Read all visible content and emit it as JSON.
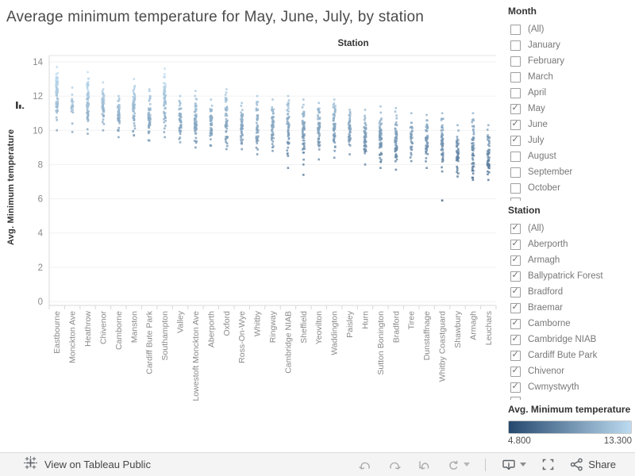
{
  "title": "Average minimum temperature for May, June, July, by station",
  "chart": {
    "column_header": "Station",
    "y_axis_label": "Avg. Minimum temperature"
  },
  "chart_data": {
    "type": "scatter",
    "subtype": "strip-plot",
    "title": "Average minimum temperature for May, June, July, by station",
    "xlabel": "Station",
    "ylabel": "Avg. Minimum temperature",
    "ylim": [
      0,
      14
    ],
    "yticks": [
      0,
      2,
      4,
      6,
      8,
      10,
      12,
      14
    ],
    "grid": true,
    "color_scale": {
      "label": "Avg. Minimum temperature",
      "min": 4.8,
      "max": 13.3,
      "min_color": "#25486e",
      "max_color": "#bcdbf0"
    },
    "stations": [
      {
        "name": "Eastbourne",
        "range": [
          10.6,
          13.7
        ],
        "n": 55,
        "outliers": [
          10.0
        ]
      },
      {
        "name": "Monckton Ave",
        "range": [
          10.4,
          12.5
        ],
        "n": 16,
        "outliers": [
          9.9
        ]
      },
      {
        "name": "Heathrow",
        "range": [
          9.8,
          13.4
        ],
        "n": 55,
        "outliers": []
      },
      {
        "name": "Chivenor",
        "range": [
          10.0,
          12.8
        ],
        "n": 45,
        "outliers": []
      },
      {
        "name": "Camborne",
        "range": [
          9.6,
          12.0
        ],
        "n": 40,
        "outliers": []
      },
      {
        "name": "Manston",
        "range": [
          9.7,
          13.0
        ],
        "n": 50,
        "outliers": []
      },
      {
        "name": "Cardiff Bute Park",
        "range": [
          9.4,
          12.4
        ],
        "n": 50,
        "outliers": []
      },
      {
        "name": "Southampton",
        "range": [
          9.6,
          13.6
        ],
        "n": 55,
        "outliers": []
      },
      {
        "name": "Valley",
        "range": [
          9.3,
          12.0
        ],
        "n": 45,
        "outliers": []
      },
      {
        "name": "Lowestoft Monckton Ave",
        "range": [
          9.0,
          12.3
        ],
        "n": 55,
        "outliers": []
      },
      {
        "name": "Aberporth",
        "range": [
          9.1,
          11.8
        ],
        "n": 45,
        "outliers": []
      },
      {
        "name": "Oxford",
        "range": [
          8.9,
          12.4
        ],
        "n": 50,
        "outliers": []
      },
      {
        "name": "Ross-On-Wye",
        "range": [
          8.9,
          11.6
        ],
        "n": 45,
        "outliers": []
      },
      {
        "name": "Whitby",
        "range": [
          8.6,
          12.0
        ],
        "n": 40,
        "outliers": []
      },
      {
        "name": "Ringway",
        "range": [
          8.8,
          11.8
        ],
        "n": 45,
        "outliers": []
      },
      {
        "name": "Cambridge NIAB",
        "range": [
          8.5,
          12.0
        ],
        "n": 55,
        "outliers": [
          7.8
        ]
      },
      {
        "name": "Sheffield",
        "range": [
          8.0,
          11.8
        ],
        "n": 55,
        "outliers": [
          7.4
        ]
      },
      {
        "name": "Yeovilton",
        "range": [
          8.3,
          11.6
        ],
        "n": 50,
        "outliers": []
      },
      {
        "name": "Waddington",
        "range": [
          8.4,
          11.8
        ],
        "n": 55,
        "outliers": []
      },
      {
        "name": "Paisley",
        "range": [
          8.6,
          11.2
        ],
        "n": 40,
        "outliers": []
      },
      {
        "name": "Hurn",
        "range": [
          8.0,
          11.2
        ],
        "n": 50,
        "outliers": []
      },
      {
        "name": "Sutton Bonington",
        "range": [
          7.8,
          11.4
        ],
        "n": 55,
        "outliers": []
      },
      {
        "name": "Bradford",
        "range": [
          7.7,
          11.3
        ],
        "n": 55,
        "outliers": []
      },
      {
        "name": "Tiree",
        "range": [
          8.2,
          11.0
        ],
        "n": 30,
        "outliers": []
      },
      {
        "name": "Dunstaffnage",
        "range": [
          7.8,
          10.9
        ],
        "n": 45,
        "outliers": []
      },
      {
        "name": "Whitby Coastguard",
        "range": [
          7.6,
          11.0
        ],
        "n": 50,
        "outliers": [
          5.9
        ]
      },
      {
        "name": "Shawbury",
        "range": [
          7.3,
          10.3
        ],
        "n": 45,
        "outliers": []
      },
      {
        "name": "Armagh",
        "range": [
          7.1,
          11.0
        ],
        "n": 55,
        "outliers": []
      },
      {
        "name": "Leuchars",
        "range": [
          7.1,
          10.3
        ],
        "n": 50,
        "outliers": []
      }
    ]
  },
  "filters": {
    "month": {
      "header": "Month",
      "clipped_next_item": true,
      "items": [
        {
          "label": "(All)",
          "checked": false
        },
        {
          "label": "January",
          "checked": false
        },
        {
          "label": "February",
          "checked": false
        },
        {
          "label": "March",
          "checked": false
        },
        {
          "label": "April",
          "checked": false
        },
        {
          "label": "May",
          "checked": true
        },
        {
          "label": "June",
          "checked": true
        },
        {
          "label": "July",
          "checked": true
        },
        {
          "label": "August",
          "checked": false
        },
        {
          "label": "September",
          "checked": false
        },
        {
          "label": "October",
          "checked": false
        }
      ]
    },
    "station": {
      "header": "Station",
      "clipped_next_item": true,
      "items": [
        {
          "label": "(All)",
          "checked": true
        },
        {
          "label": "Aberporth",
          "checked": true
        },
        {
          "label": "Armagh",
          "checked": true
        },
        {
          "label": "Ballypatrick Forest",
          "checked": true
        },
        {
          "label": "Bradford",
          "checked": true
        },
        {
          "label": "Braemar",
          "checked": true
        },
        {
          "label": "Camborne",
          "checked": true
        },
        {
          "label": "Cambridge NIAB",
          "checked": true
        },
        {
          "label": "Cardiff Bute Park",
          "checked": true
        },
        {
          "label": "Chivenor",
          "checked": true
        },
        {
          "label": "Cwmystwyth",
          "checked": true
        }
      ]
    }
  },
  "legend": {
    "title": "Avg. Minimum temperature",
    "min_label": "4.800",
    "max_label": "13.300",
    "min_color": "#25486e",
    "max_color": "#bcdbf0"
  },
  "toolbar": {
    "view_label": "View on Tableau Public",
    "share_label": "Share"
  }
}
